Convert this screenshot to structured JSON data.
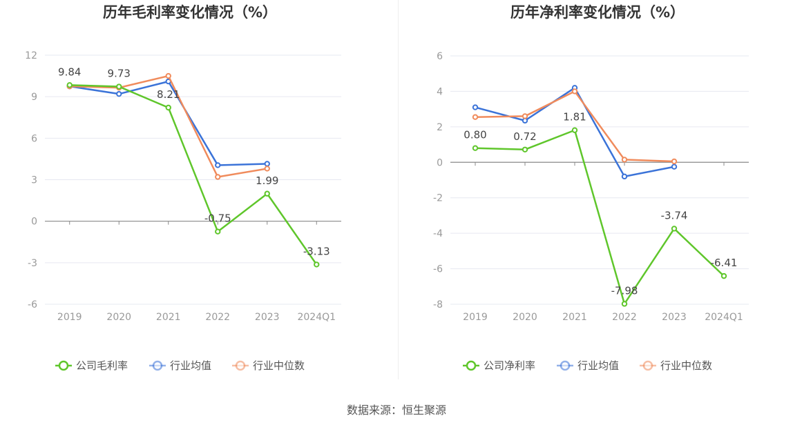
{
  "source": "数据来源：恒生聚源",
  "colors": {
    "company": "#5fc62b",
    "industry_avg": "#3b73d8",
    "industry_median": "#f08b5c"
  },
  "chart_data": [
    {
      "type": "line",
      "title": "历年毛利率变化情况（%）",
      "categories": [
        "2019",
        "2020",
        "2021",
        "2022",
        "2023",
        "2024Q1"
      ],
      "ylim": [
        -6,
        12
      ],
      "yticks": [
        -6,
        -3,
        0,
        3,
        6,
        9,
        12
      ],
      "grid": true,
      "legend_position": "bottom-center",
      "series": [
        {
          "name": "公司毛利率",
          "color": "#5fc62b",
          "values": [
            9.84,
            9.73,
            8.21,
            -0.75,
            1.99,
            -3.13
          ],
          "labels": [
            "9.84",
            "9.73",
            "8.21",
            "-0.75",
            "1.99",
            "-3.13"
          ]
        },
        {
          "name": "行业均值",
          "color": "#3b73d8",
          "values": [
            9.75,
            9.2,
            10.1,
            4.05,
            4.15,
            null
          ]
        },
        {
          "name": "行业中位数",
          "color": "#f08b5c",
          "values": [
            9.75,
            9.65,
            10.5,
            3.2,
            3.8,
            null
          ]
        }
      ]
    },
    {
      "type": "line",
      "title": "历年净利率变化情况（%）",
      "categories": [
        "2019",
        "2020",
        "2021",
        "2022",
        "2023",
        "2024Q1"
      ],
      "ylim": [
        -8,
        6
      ],
      "yticks": [
        -8,
        -6,
        -4,
        -2,
        0,
        2,
        4,
        6
      ],
      "grid": true,
      "legend_position": "bottom-center",
      "series": [
        {
          "name": "公司净利率",
          "color": "#5fc62b",
          "values": [
            0.8,
            0.72,
            1.81,
            -7.98,
            -3.74,
            -6.41
          ],
          "labels": [
            "0.80",
            "0.72",
            "1.81",
            "-7.98",
            "-3.74",
            "-6.41"
          ]
        },
        {
          "name": "行业均值",
          "color": "#3b73d8",
          "values": [
            3.1,
            2.35,
            4.2,
            -0.8,
            -0.25,
            null
          ]
        },
        {
          "name": "行业中位数",
          "color": "#f08b5c",
          "values": [
            2.55,
            2.6,
            4.0,
            0.15,
            0.05,
            null
          ]
        }
      ]
    }
  ]
}
